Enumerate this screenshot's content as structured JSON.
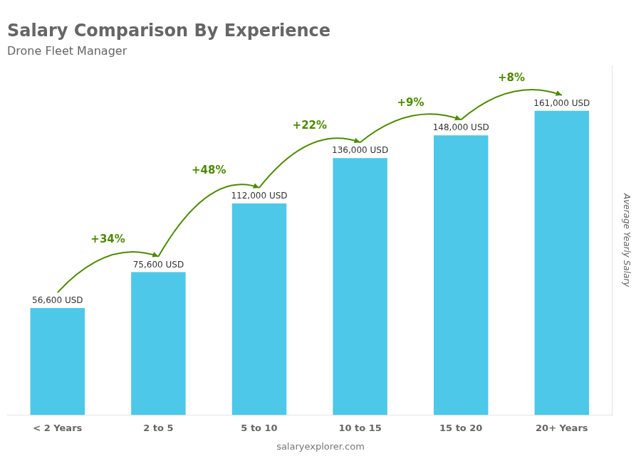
{
  "chart_data": {
    "type": "bar",
    "title": "Salary Comparison By Experience",
    "subtitle": "Drone Fleet Manager",
    "ylabel": "Average Yearly Salary",
    "source": "salaryexplorer.com",
    "categories": [
      "< 2 Years",
      "2 to 5",
      "5 to 10",
      "10 to 15",
      "15 to 20",
      "20+ Years"
    ],
    "values": [
      56600,
      75600,
      112000,
      136000,
      148000,
      161000
    ],
    "value_labels": [
      "56,600 USD",
      "75,600 USD",
      "112,000 USD",
      "136,000 USD",
      "148,000 USD",
      "161,000 USD"
    ],
    "change_labels": [
      "+34%",
      "+48%",
      "+22%",
      "+9%",
      "+8%"
    ],
    "color": "#4DC8E8",
    "ylim": [
      0,
      185000
    ],
    "data_labels": true,
    "tick_labels": "x",
    "grid": false
  }
}
